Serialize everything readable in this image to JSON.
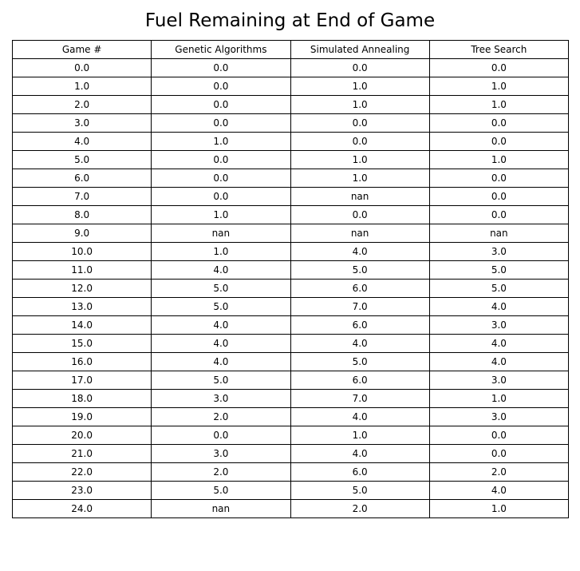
{
  "chart_data": {
    "type": "table",
    "title": "Fuel Remaining at End of Game",
    "columns": [
      "Game #",
      "Genetic Algorithms",
      "Simulated Annealing",
      "Tree Search"
    ],
    "rows": [
      [
        "0.0",
        "0.0",
        "0.0",
        "0.0"
      ],
      [
        "1.0",
        "0.0",
        "1.0",
        "1.0"
      ],
      [
        "2.0",
        "0.0",
        "1.0",
        "1.0"
      ],
      [
        "3.0",
        "0.0",
        "0.0",
        "0.0"
      ],
      [
        "4.0",
        "1.0",
        "0.0",
        "0.0"
      ],
      [
        "5.0",
        "0.0",
        "1.0",
        "1.0"
      ],
      [
        "6.0",
        "0.0",
        "1.0",
        "0.0"
      ],
      [
        "7.0",
        "0.0",
        "nan",
        "0.0"
      ],
      [
        "8.0",
        "1.0",
        "0.0",
        "0.0"
      ],
      [
        "9.0",
        "nan",
        "nan",
        "nan"
      ],
      [
        "10.0",
        "1.0",
        "4.0",
        "3.0"
      ],
      [
        "11.0",
        "4.0",
        "5.0",
        "5.0"
      ],
      [
        "12.0",
        "5.0",
        "6.0",
        "5.0"
      ],
      [
        "13.0",
        "5.0",
        "7.0",
        "4.0"
      ],
      [
        "14.0",
        "4.0",
        "6.0",
        "3.0"
      ],
      [
        "15.0",
        "4.0",
        "4.0",
        "4.0"
      ],
      [
        "16.0",
        "4.0",
        "5.0",
        "4.0"
      ],
      [
        "17.0",
        "5.0",
        "6.0",
        "3.0"
      ],
      [
        "18.0",
        "3.0",
        "7.0",
        "1.0"
      ],
      [
        "19.0",
        "2.0",
        "4.0",
        "3.0"
      ],
      [
        "20.0",
        "0.0",
        "1.0",
        "0.0"
      ],
      [
        "21.0",
        "3.0",
        "4.0",
        "0.0"
      ],
      [
        "22.0",
        "2.0",
        "6.0",
        "2.0"
      ],
      [
        "23.0",
        "5.0",
        "5.0",
        "4.0"
      ],
      [
        "24.0",
        "nan",
        "2.0",
        "1.0"
      ]
    ]
  }
}
